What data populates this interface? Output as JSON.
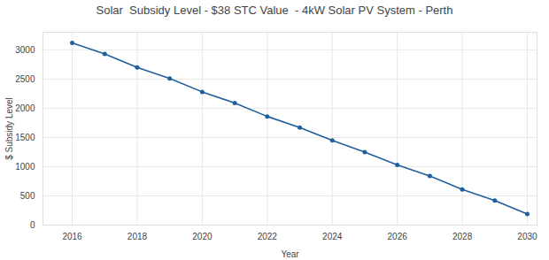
{
  "chart_data": {
    "type": "line",
    "title": "Solar  Subsidy Level - $38 STC Value  - 4kW Solar PV System - Perth",
    "x_label": "Year",
    "y_label": "$ Subsidy Level",
    "x": [
      2016,
      2017,
      2018,
      2019,
      2020,
      2021,
      2022,
      2023,
      2024,
      2025,
      2026,
      2027,
      2028,
      2029,
      2030
    ],
    "values": [
      3120,
      2930,
      2700,
      2510,
      2280,
      2090,
      1860,
      1670,
      1450,
      1250,
      1030,
      840,
      610,
      420,
      190
    ],
    "color": "#1f5f9e",
    "marker": "circle",
    "xlim": [
      2015.1,
      2030.3
    ],
    "xticks": [
      2016,
      2018,
      2020,
      2022,
      2024,
      2026,
      2028,
      2030
    ],
    "ylim": [
      0,
      3300
    ],
    "yticks": [
      0,
      500,
      1000,
      1500,
      2000,
      2500,
      3000
    ],
    "grid": true
  }
}
